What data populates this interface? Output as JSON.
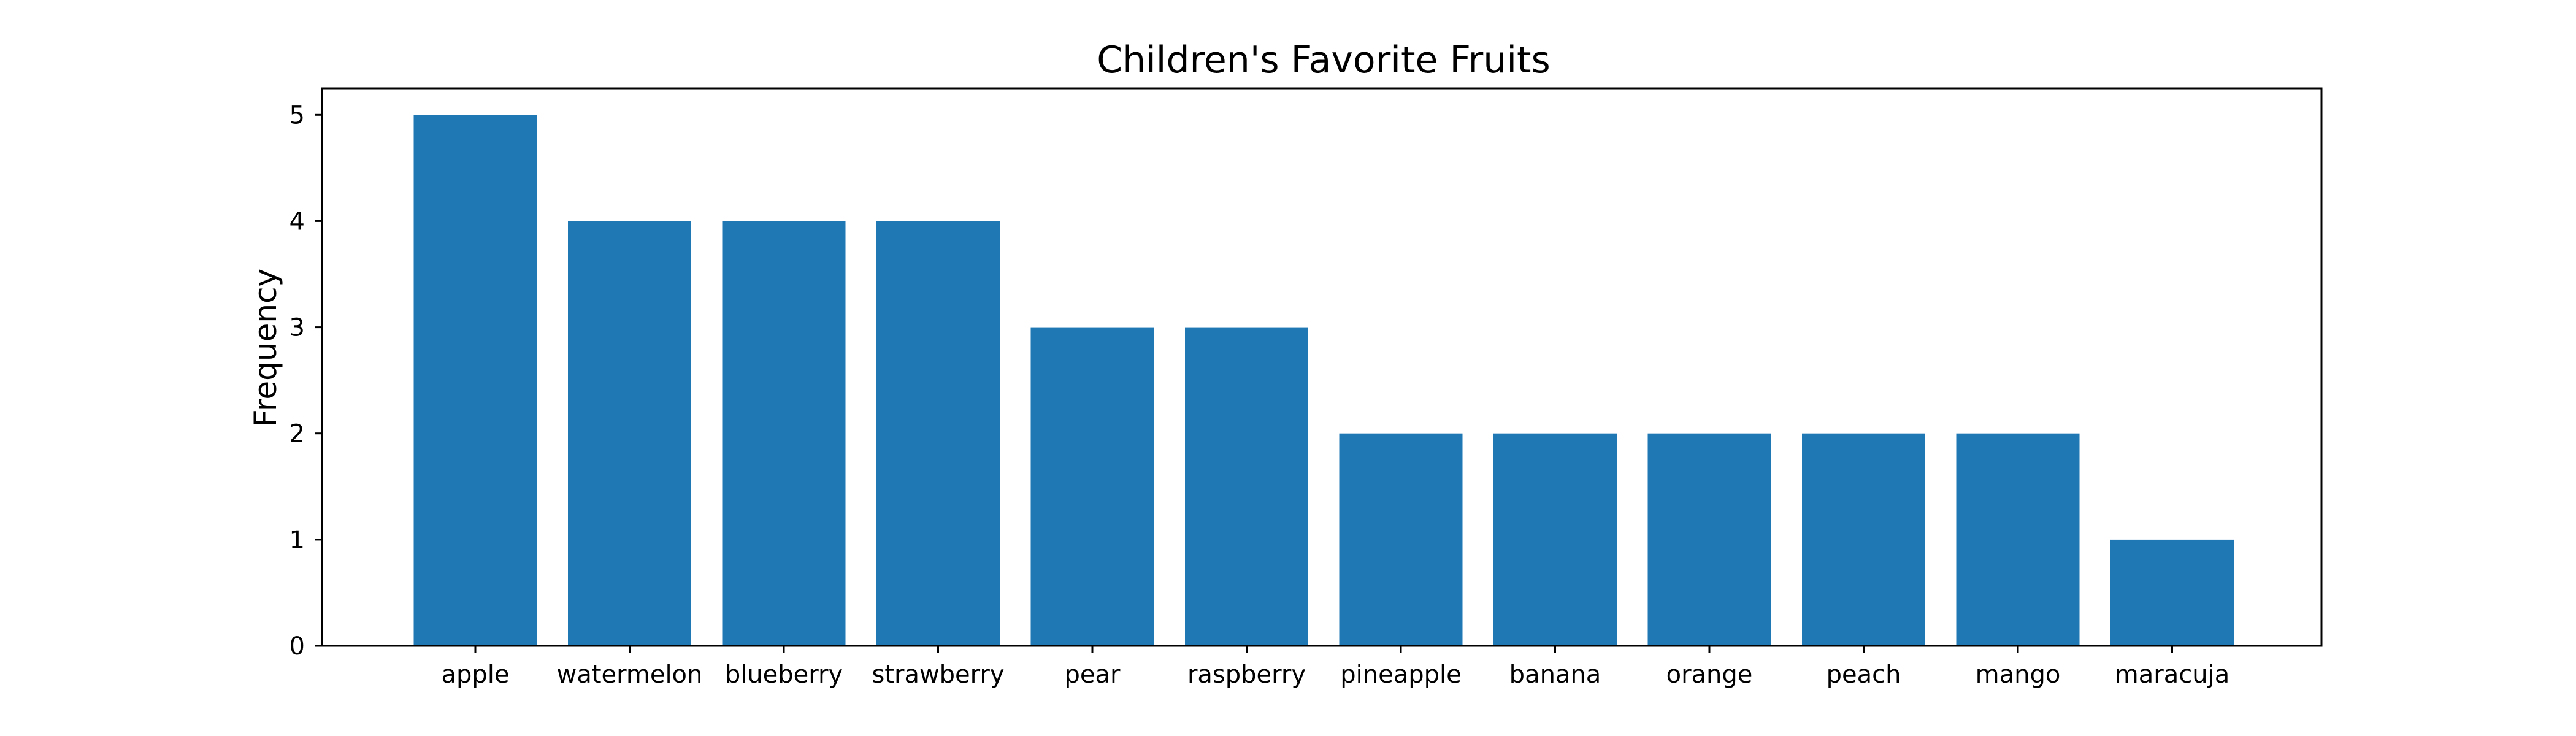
{
  "chart_data": {
    "type": "bar",
    "title": "Children's Favorite Fruits",
    "xlabel": "",
    "ylabel": "Frequency",
    "categories": [
      "apple",
      "watermelon",
      "blueberry",
      "strawberry",
      "pear",
      "raspberry",
      "pineapple",
      "banana",
      "orange",
      "peach",
      "mango",
      "maracuja"
    ],
    "values": [
      5,
      4,
      4,
      4,
      3,
      3,
      2,
      2,
      2,
      2,
      2,
      1
    ],
    "yticks": [
      "0",
      "1",
      "2",
      "3",
      "4",
      "5"
    ],
    "ylim": [
      0,
      5.25
    ],
    "grid": false,
    "legend": false,
    "bar_color": "#1f77b4"
  }
}
